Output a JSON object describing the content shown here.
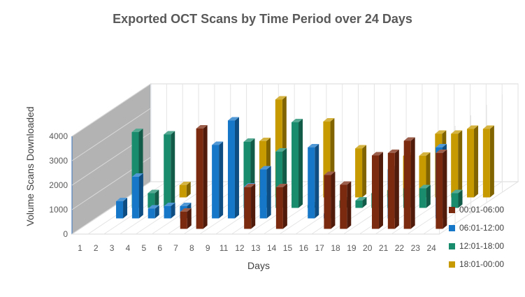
{
  "chart_data": {
    "type": "bar",
    "title": "Exported OCT Scans by Time Period over 24 Days",
    "xlabel": "Days",
    "ylabel": "Volume Scans Downloaded",
    "ylim": [
      0,
      4000
    ],
    "yticks": [
      "0",
      "1000",
      "2000",
      "3000",
      "4000"
    ],
    "categories": [
      "1",
      "2",
      "3",
      "4",
      "5",
      "6",
      "7",
      "8",
      "9",
      "11",
      "12",
      "13",
      "14",
      "15",
      "16",
      "17",
      "18",
      "19",
      "20",
      "21",
      "22",
      "23",
      "24"
    ],
    "legend_position": "bottom-right",
    "grid": true,
    "three_d": true,
    "series": [
      {
        "name": "00:01-06:00",
        "color": "#7B2A10",
        "values": [
          0,
          0,
          0,
          0,
          0,
          0,
          700,
          4100,
          0,
          0,
          1700,
          0,
          1700,
          0,
          0,
          2200,
          1800,
          0,
          3000,
          3100,
          3600,
          0,
          3100
        ]
      },
      {
        "name": "06:01-12:00",
        "color": "#1677C8",
        "values": [
          0,
          700,
          1700,
          400,
          500,
          500,
          0,
          3000,
          4000,
          1300,
          2000,
          0,
          0,
          2900,
          200,
          0,
          0,
          0,
          2000,
          0,
          0,
          2900,
          0
        ]
      },
      {
        "name": "12:01-18:00",
        "color": "#1A8C6E",
        "values": [
          0,
          3100,
          600,
          3000,
          0,
          0,
          0,
          0,
          2700,
          500,
          2300,
          3500,
          100,
          0,
          300,
          300,
          600,
          700,
          800,
          800,
          0,
          600,
          0
        ]
      },
      {
        "name": "18:01-00:00",
        "color": "#C79A00",
        "values": [
          0,
          0,
          0,
          500,
          0,
          0,
          0,
          0,
          2300,
          4000,
          0,
          0,
          3100,
          0,
          2000,
          0,
          300,
          1700,
          1700,
          2600,
          2600,
          2800,
          2800
        ]
      }
    ]
  }
}
